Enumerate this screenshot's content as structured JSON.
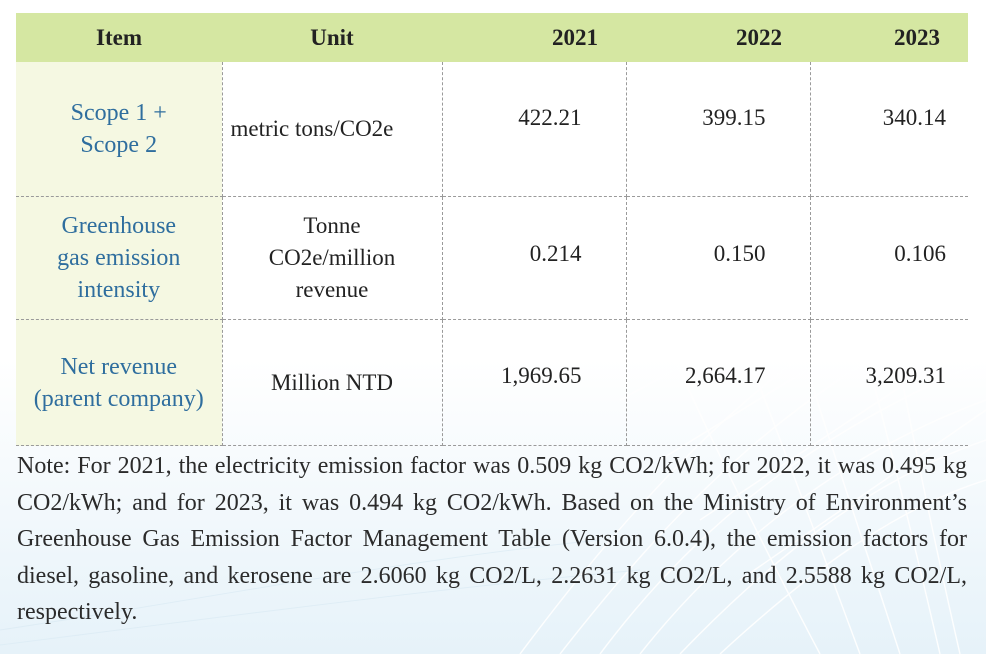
{
  "table": {
    "headers": [
      "Item",
      "Unit",
      "2021",
      "2022",
      "2023"
    ],
    "rows": [
      {
        "item": [
          "Scope 1 +",
          "Scope 2"
        ],
        "unit": [
          "metric tons/CO2e"
        ],
        "values": [
          "422.21",
          "399.15",
          "340.14"
        ]
      },
      {
        "item": [
          "Greenhouse",
          "gas emission",
          "intensity"
        ],
        "unit": [
          "Tonne",
          "CO2e/million",
          "revenue"
        ],
        "values": [
          "0.214",
          "0.150",
          "0.106"
        ]
      },
      {
        "item": [
          "Net revenue",
          "(parent company)"
        ],
        "unit": [
          "Million NTD"
        ],
        "values": [
          "1,969.65",
          "2,664.17",
          "3,209.31"
        ]
      }
    ]
  },
  "note": "Note: For 2021, the electricity emission factor was 0.509 kg CO2/kWh; for 2022, it was 0.495 kg CO2/kWh; and for 2023, it was 0.494 kg CO2/kWh. Based on the Ministry of Environment’s Greenhouse Gas Emission Factor Management Table (Version 6.0.4), the emission factors for diesel, gasoline, and kerosene are 2.6060 kg CO2/L, 2.2631 kg CO2/L, and 2.5588 kg CO2/L, respectively.",
  "colors": {
    "header_bg": "#d5e7a2",
    "item_col_bg": "#f5f8e2",
    "item_text": "#2f6e9e",
    "background_tint": "#e6f2f9"
  }
}
